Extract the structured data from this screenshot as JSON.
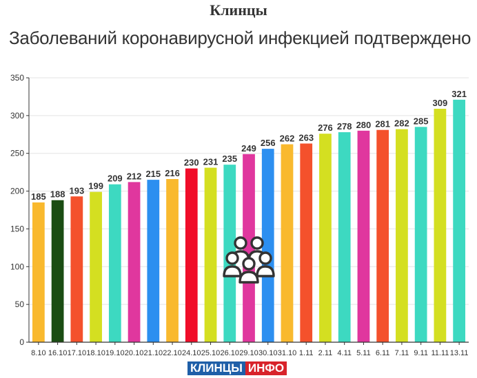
{
  "header": {
    "city": "Клинцы",
    "subtitle": "Заболеваний коронавирусной инфекцией подтверждено"
  },
  "logo": {
    "part1": "КЛИНЦЫ",
    "part2": "ИНФО",
    "color1": "#1f5fa8",
    "color2": "#d8232a"
  },
  "icon": "people-group-icon",
  "chart_data": {
    "type": "bar",
    "title": "Заболеваний коронавирусной инфекцией подтверждено",
    "categories": [
      "8.10",
      "16.10",
      "17.10",
      "18.10",
      "19.10",
      "20.10",
      "21.10",
      "22.10",
      "24.10",
      "25.10",
      "26.10",
      "29.10",
      "30.10",
      "31.10",
      "1.11",
      "2.11",
      "4.11",
      "5.11",
      "6.11",
      "7.11",
      "9.11",
      "11.11",
      "13.11"
    ],
    "values": [
      185,
      188,
      193,
      199,
      209,
      212,
      215,
      216,
      230,
      231,
      235,
      249,
      256,
      262,
      263,
      276,
      278,
      280,
      281,
      282,
      285,
      309,
      321
    ],
    "colors": [
      "#f9b92e",
      "#1b4d13",
      "#f4512c",
      "#d4df21",
      "#3dd9c1",
      "#e0379e",
      "#2c8ff0",
      "#f9b92e",
      "#f00d29",
      "#d4df21",
      "#3dd9c1",
      "#e0379e",
      "#2c8ff0",
      "#f9b92e",
      "#f4512c",
      "#d4df21",
      "#3dd9c1",
      "#e0379e",
      "#f4512c",
      "#d4df21",
      "#3dd9c1",
      "#d4df21",
      "#3dd9c1"
    ],
    "xlabel": "",
    "ylabel": "",
    "ylim": [
      0,
      350
    ],
    "yticks": [
      0,
      50,
      100,
      150,
      200,
      250,
      300,
      350
    ],
    "grid": true,
    "data_labels": true
  }
}
